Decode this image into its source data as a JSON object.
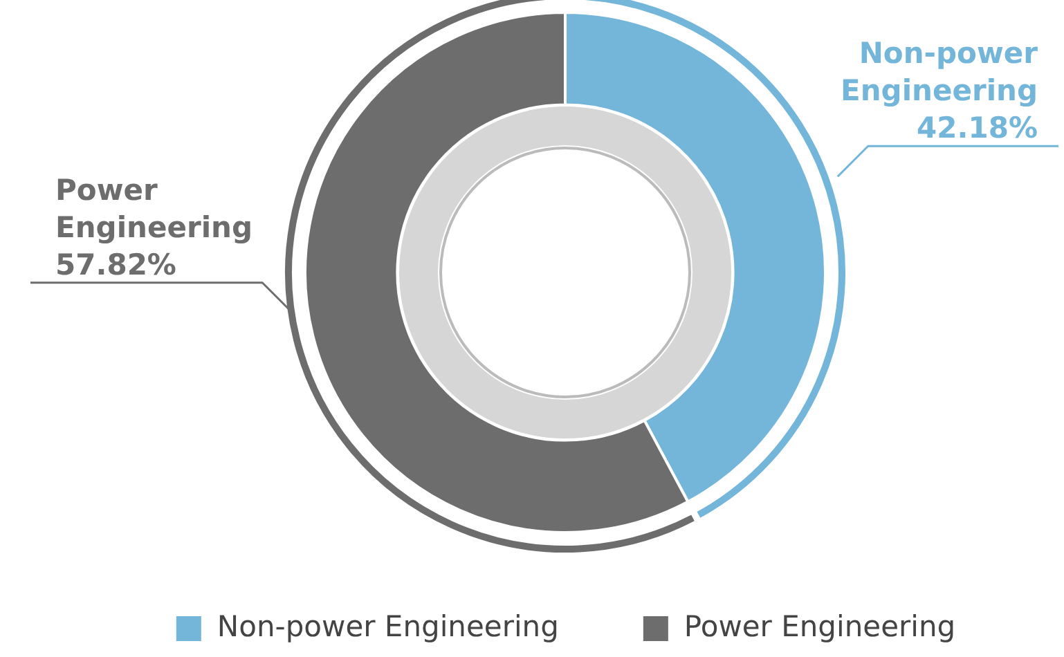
{
  "chart_data": {
    "type": "donut",
    "categories": [
      "Non-power Engineering",
      "Power Engineering"
    ],
    "values": [
      42.18,
      57.82
    ],
    "colors": [
      "#74b5da",
      "#6d6d6d"
    ],
    "value_labels": [
      "42.18%",
      "57.82%"
    ],
    "legend": "bottom"
  }
}
